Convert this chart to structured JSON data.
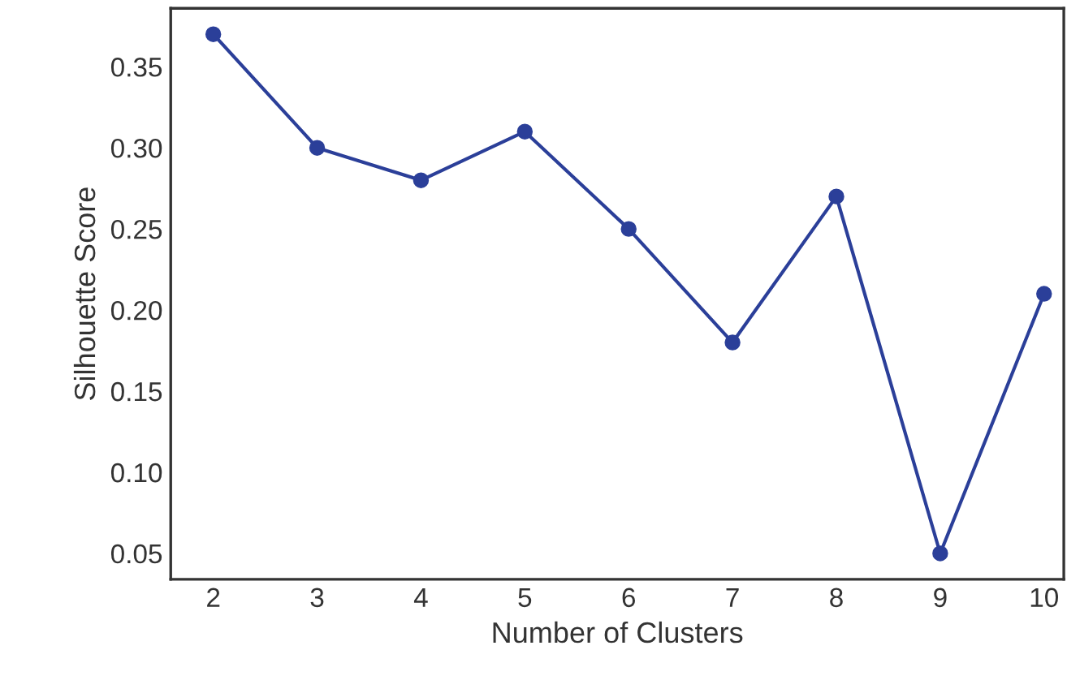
{
  "chart_data": {
    "type": "line",
    "xlabel": "Number of Clusters",
    "ylabel": "Silhouette Score",
    "x": [
      2,
      3,
      4,
      5,
      6,
      7,
      8,
      9,
      10
    ],
    "series": [
      {
        "color": "#2b3f99",
        "values": [
          0.37,
          0.3,
          0.28,
          0.31,
          0.25,
          0.18,
          0.27,
          0.05,
          0.21
        ]
      }
    ],
    "marker": "circle",
    "line_style": "solid",
    "grid": false,
    "legend": false,
    "xlim": [
      1.59,
      10.19
    ],
    "ylim": [
      0.034,
      0.386
    ],
    "xticks": [
      2,
      3,
      4,
      5,
      6,
      7,
      8,
      9,
      10
    ],
    "yticks": [
      {
        "value": 0.05,
        "label": "0.05"
      },
      {
        "value": 0.1,
        "label": "0.10"
      },
      {
        "value": 0.15,
        "label": "0.15"
      },
      {
        "value": 0.2,
        "label": "0.20"
      },
      {
        "value": 0.25,
        "label": "0.25"
      },
      {
        "value": 0.3,
        "label": "0.30"
      },
      {
        "value": 0.35,
        "label": "0.35"
      }
    ]
  }
}
